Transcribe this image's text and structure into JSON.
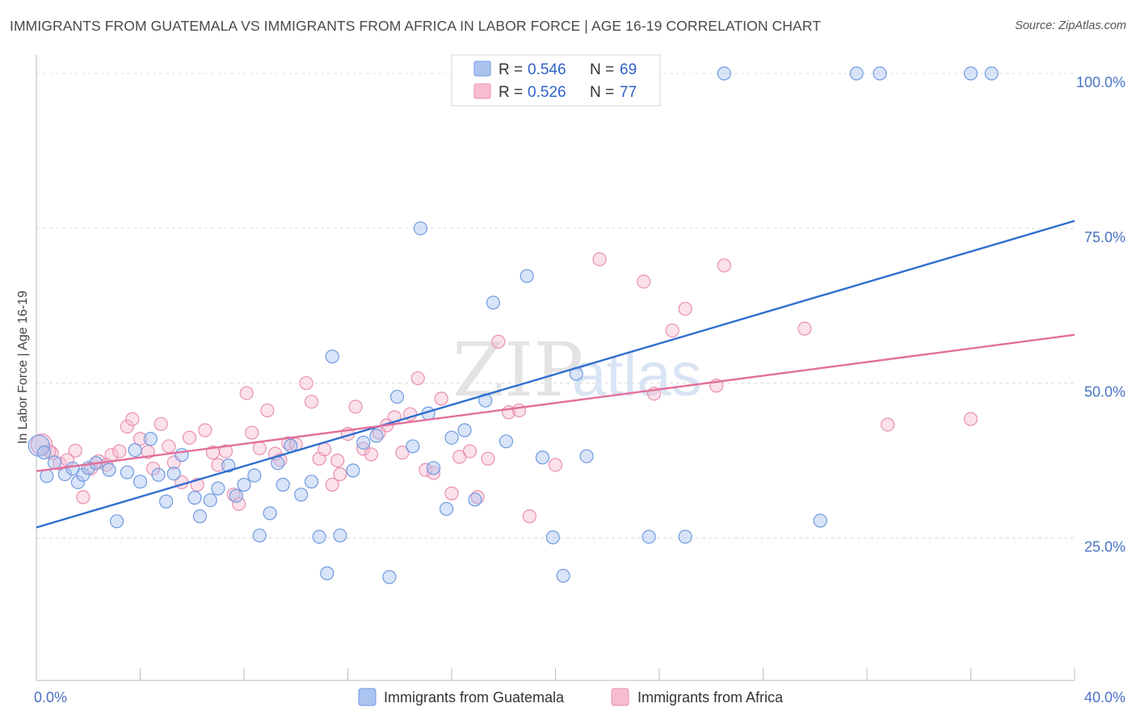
{
  "header": {
    "title": "IMMIGRANTS FROM GUATEMALA VS IMMIGRANTS FROM AFRICA IN LABOR FORCE | AGE 16-19 CORRELATION CHART",
    "source": "Source: ZipAtlas.com"
  },
  "watermark": {
    "zip": "ZIP",
    "atlas": "atlas"
  },
  "legend": {
    "r_label": "R =",
    "n_label": "N =",
    "items": [
      {
        "r": "0.546",
        "n": "69"
      },
      {
        "r": "0.526",
        "n": "77"
      }
    ]
  },
  "colors": {
    "guatemala_fill": "#aac4ef",
    "guatemala_stroke": "#6f9ae0",
    "guatemala_line": "#2f6fcf",
    "africa_fill": "#f7bcd0",
    "africa_stroke": "#e98fb0",
    "africa_line": "#e2709a"
  },
  "chart_data": {
    "type": "scatter",
    "title": "IMMIGRANTS FROM GUATEMALA VS IMMIGRANTS FROM AFRICA IN LABOR FORCE | AGE 16-19 CORRELATION CHART",
    "xlabel": "",
    "ylabel": "In Labor Force | Age 16-19",
    "xlim": [
      0,
      40
    ],
    "ylim": [
      2,
      103
    ],
    "x_tick_labels": [
      "0.0%",
      "40.0%"
    ],
    "y_ticks": [
      25,
      50,
      75,
      100
    ],
    "y_tick_labels": [
      "25.0%",
      "50.0%",
      "75.0%",
      "100.0%"
    ],
    "grid": true,
    "legend_position": "top-center",
    "series": [
      {
        "name": "Immigrants from Guatemala",
        "r": 0.546,
        "n": 69,
        "trend": {
          "x": [
            0,
            40
          ],
          "y": [
            26.7,
            76.2
          ]
        },
        "points": [
          [
            0.1,
            39.9
          ],
          [
            0.4,
            35.0
          ],
          [
            0.7,
            37.2
          ],
          [
            1.1,
            35.3
          ],
          [
            1.4,
            36.2
          ],
          [
            1.6,
            34.0
          ],
          [
            1.8,
            35.2
          ],
          [
            2.0,
            36.3
          ],
          [
            2.3,
            37.1
          ],
          [
            3.1,
            27.7
          ],
          [
            3.5,
            35.6
          ],
          [
            3.8,
            39.2
          ],
          [
            4.0,
            34.1
          ],
          [
            4.4,
            41.0
          ],
          [
            4.7,
            35.2
          ],
          [
            5.0,
            30.9
          ],
          [
            5.3,
            35.4
          ],
          [
            5.6,
            38.4
          ],
          [
            6.1,
            31.5
          ],
          [
            6.3,
            28.5
          ],
          [
            6.7,
            31.1
          ],
          [
            7.0,
            33.0
          ],
          [
            7.4,
            36.7
          ],
          [
            7.7,
            31.8
          ],
          [
            8.0,
            33.6
          ],
          [
            8.4,
            35.1
          ],
          [
            8.6,
            25.4
          ],
          [
            9.0,
            29.0
          ],
          [
            9.3,
            37.1
          ],
          [
            9.5,
            33.6
          ],
          [
            9.8,
            39.9
          ],
          [
            10.2,
            32.0
          ],
          [
            10.6,
            34.1
          ],
          [
            10.9,
            25.2
          ],
          [
            11.2,
            19.3
          ],
          [
            11.4,
            54.3
          ],
          [
            11.7,
            25.4
          ],
          [
            12.2,
            35.9
          ],
          [
            12.6,
            40.4
          ],
          [
            13.1,
            41.5
          ],
          [
            13.6,
            18.7
          ],
          [
            13.9,
            47.8
          ],
          [
            14.5,
            39.8
          ],
          [
            14.8,
            75.0
          ],
          [
            15.1,
            45.1
          ],
          [
            15.3,
            36.3
          ],
          [
            15.8,
            29.7
          ],
          [
            16.0,
            41.2
          ],
          [
            16.5,
            42.4
          ],
          [
            16.9,
            31.2
          ],
          [
            17.3,
            47.2
          ],
          [
            17.6,
            63.0
          ],
          [
            18.1,
            40.6
          ],
          [
            18.9,
            67.3
          ],
          [
            19.5,
            38.0
          ],
          [
            19.9,
            25.1
          ],
          [
            20.3,
            18.9
          ],
          [
            20.8,
            51.5
          ],
          [
            21.2,
            38.2
          ],
          [
            23.6,
            25.2
          ],
          [
            25.0,
            25.2
          ],
          [
            26.5,
            100.0
          ],
          [
            30.2,
            27.8
          ],
          [
            31.6,
            100.0
          ],
          [
            32.5,
            100.0
          ],
          [
            36.0,
            100.0
          ],
          [
            36.8,
            100.0
          ],
          [
            0.3,
            38.8
          ],
          [
            2.8,
            36.0
          ]
        ]
      },
      {
        "name": "Immigrants from Africa",
        "r": 0.526,
        "n": 77,
        "trend": {
          "x": [
            0,
            40
          ],
          "y": [
            35.8,
            57.8
          ]
        },
        "points": [
          [
            0.2,
            40.1
          ],
          [
            0.6,
            38.7
          ],
          [
            0.9,
            37.0
          ],
          [
            1.2,
            37.6
          ],
          [
            1.5,
            39.1
          ],
          [
            1.8,
            31.6
          ],
          [
            2.1,
            36.2
          ],
          [
            2.4,
            37.4
          ],
          [
            2.7,
            36.8
          ],
          [
            2.9,
            38.4
          ],
          [
            3.2,
            39.0
          ],
          [
            3.5,
            43.0
          ],
          [
            3.7,
            44.2
          ],
          [
            4.0,
            41.0
          ],
          [
            4.3,
            38.9
          ],
          [
            4.5,
            36.2
          ],
          [
            4.8,
            43.4
          ],
          [
            5.1,
            39.8
          ],
          [
            5.3,
            37.2
          ],
          [
            5.6,
            34.0
          ],
          [
            5.9,
            41.2
          ],
          [
            6.2,
            33.6
          ],
          [
            6.5,
            42.4
          ],
          [
            6.8,
            38.8
          ],
          [
            7.0,
            36.8
          ],
          [
            7.3,
            39.0
          ],
          [
            7.6,
            32.0
          ],
          [
            7.8,
            30.5
          ],
          [
            8.1,
            48.4
          ],
          [
            8.3,
            42.0
          ],
          [
            8.6,
            39.5
          ],
          [
            8.9,
            45.6
          ],
          [
            9.2,
            38.6
          ],
          [
            9.4,
            37.6
          ],
          [
            9.7,
            40.3
          ],
          [
            10.0,
            40.1
          ],
          [
            10.4,
            50.0
          ],
          [
            10.6,
            47.0
          ],
          [
            10.9,
            37.8
          ],
          [
            11.1,
            39.3
          ],
          [
            11.4,
            33.6
          ],
          [
            11.7,
            35.3
          ],
          [
            12.0,
            41.8
          ],
          [
            12.3,
            46.2
          ],
          [
            12.6,
            39.4
          ],
          [
            12.9,
            38.5
          ],
          [
            13.2,
            42.0
          ],
          [
            13.5,
            43.2
          ],
          [
            13.8,
            44.5
          ],
          [
            14.1,
            38.8
          ],
          [
            14.4,
            45.0
          ],
          [
            14.7,
            50.8
          ],
          [
            15.0,
            36.0
          ],
          [
            15.3,
            35.5
          ],
          [
            15.6,
            47.5
          ],
          [
            16.0,
            32.2
          ],
          [
            16.3,
            38.1
          ],
          [
            16.7,
            39.0
          ],
          [
            17.0,
            31.6
          ],
          [
            17.4,
            37.8
          ],
          [
            17.8,
            56.7
          ],
          [
            18.2,
            45.3
          ],
          [
            18.6,
            45.6
          ],
          [
            19.0,
            28.5
          ],
          [
            20.0,
            36.8
          ],
          [
            21.7,
            70.0
          ],
          [
            23.4,
            66.4
          ],
          [
            23.8,
            48.3
          ],
          [
            24.5,
            58.5
          ],
          [
            25.0,
            62.0
          ],
          [
            26.2,
            49.6
          ],
          [
            26.5,
            69.0
          ],
          [
            29.6,
            58.8
          ],
          [
            32.8,
            43.3
          ],
          [
            36.0,
            44.2
          ],
          [
            11.6,
            37.5
          ],
          [
            0.5,
            39.0
          ]
        ]
      }
    ]
  }
}
